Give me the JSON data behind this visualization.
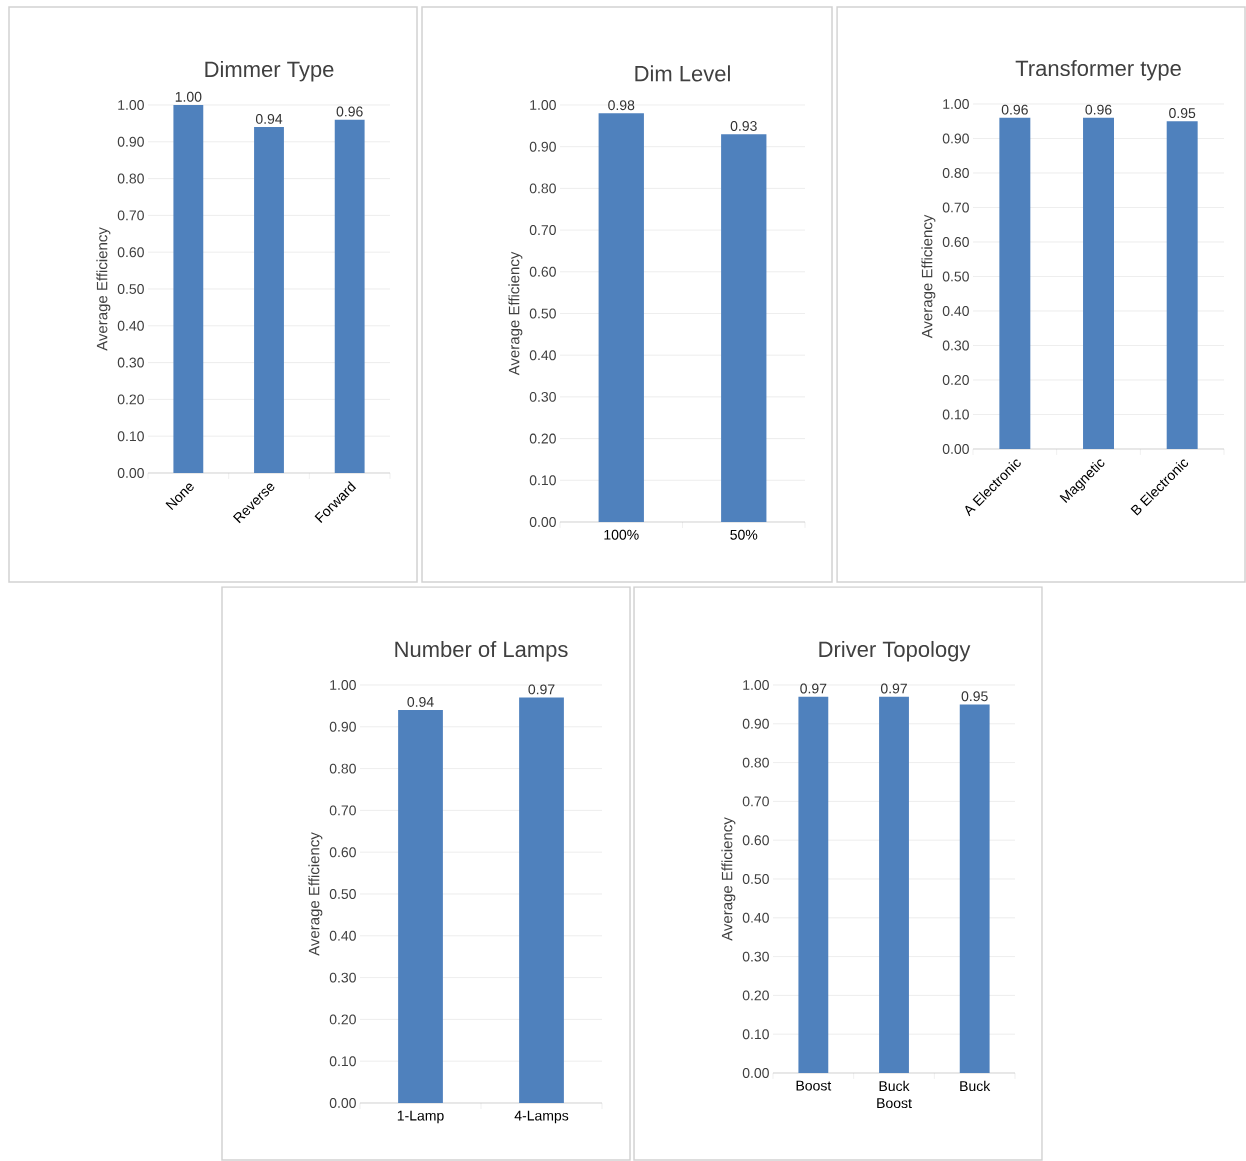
{
  "chart_data": [
    {
      "type": "bar",
      "title": "Dimmer Type",
      "ylabel": "Average Efficiency",
      "categories": [
        "None",
        "Reverse",
        "Forward"
      ],
      "values": [
        1.0,
        0.94,
        0.96
      ],
      "value_labels": [
        "1.00",
        "0.94",
        "0.96"
      ],
      "color": "#4f81bd",
      "grid": "y",
      "ylim": [
        0,
        1.0
      ],
      "yticks": [
        {
          "value": 0,
          "label": "0.00"
        },
        {
          "value": 0.1,
          "label": "0.10"
        },
        {
          "value": 0.2,
          "label": "0.20"
        },
        {
          "value": 0.3,
          "label": "0.30"
        },
        {
          "value": 0.4,
          "label": "0.40"
        },
        {
          "value": 0.5,
          "label": "0.50"
        },
        {
          "value": 0.6,
          "label": "0.60"
        },
        {
          "value": 0.7,
          "label": "0.70"
        },
        {
          "value": 0.8,
          "label": "0.80"
        },
        {
          "value": 0.9,
          "label": "0.90"
        },
        {
          "value": 1.0,
          "label": "1.00"
        }
      ]
    },
    {
      "type": "bar",
      "title": "Dim Level",
      "ylabel": "Average Efficiency",
      "categories": [
        "100%",
        "50%"
      ],
      "values": [
        0.98,
        0.93
      ],
      "value_labels": [
        "0.98",
        "0.93"
      ],
      "color": "#4f81bd",
      "grid": "y",
      "ylim": [
        0,
        1.0
      ],
      "yticks": [
        {
          "value": 0,
          "label": "0.00"
        },
        {
          "value": 0.1,
          "label": "0.10"
        },
        {
          "value": 0.2,
          "label": "0.20"
        },
        {
          "value": 0.3,
          "label": "0.30"
        },
        {
          "value": 0.4,
          "label": "0.40"
        },
        {
          "value": 0.5,
          "label": "0.50"
        },
        {
          "value": 0.6,
          "label": "0.60"
        },
        {
          "value": 0.7,
          "label": "0.70"
        },
        {
          "value": 0.8,
          "label": "0.80"
        },
        {
          "value": 0.9,
          "label": "0.90"
        },
        {
          "value": 1.0,
          "label": "1.00"
        }
      ]
    },
    {
      "type": "bar",
      "title": "Transformer type",
      "ylabel": "Average Efficiency",
      "categories": [
        "A Electronic",
        "Magnetic",
        "B Electronic"
      ],
      "values": [
        0.96,
        0.96,
        0.95
      ],
      "value_labels": [
        "0.96",
        "0.96",
        "0.95"
      ],
      "color": "#4f81bd",
      "grid": "y",
      "ylim": [
        0,
        1.0
      ],
      "yticks": [
        {
          "value": 0,
          "label": "0.00"
        },
        {
          "value": 0.1,
          "label": "0.10"
        },
        {
          "value": 0.2,
          "label": "0.20"
        },
        {
          "value": 0.3,
          "label": "0.30"
        },
        {
          "value": 0.4,
          "label": "0.40"
        },
        {
          "value": 0.5,
          "label": "0.50"
        },
        {
          "value": 0.6,
          "label": "0.60"
        },
        {
          "value": 0.7,
          "label": "0.70"
        },
        {
          "value": 0.8,
          "label": "0.80"
        },
        {
          "value": 0.9,
          "label": "0.90"
        },
        {
          "value": 1.0,
          "label": "1.00"
        }
      ]
    },
    {
      "type": "bar",
      "title": "Number of Lamps",
      "ylabel": "Average Efficiency",
      "categories": [
        "1-Lamp",
        "4-Lamps"
      ],
      "values": [
        0.94,
        0.97
      ],
      "value_labels": [
        "0.94",
        "0.97"
      ],
      "color": "#4f81bd",
      "grid": "y",
      "ylim": [
        0,
        1.0
      ],
      "yticks": [
        {
          "value": 0,
          "label": "0.00"
        },
        {
          "value": 0.1,
          "label": "0.10"
        },
        {
          "value": 0.2,
          "label": "0.20"
        },
        {
          "value": 0.3,
          "label": "0.30"
        },
        {
          "value": 0.4,
          "label": "0.40"
        },
        {
          "value": 0.5,
          "label": "0.50"
        },
        {
          "value": 0.6,
          "label": "0.60"
        },
        {
          "value": 0.7,
          "label": "0.70"
        },
        {
          "value": 0.8,
          "label": "0.80"
        },
        {
          "value": 0.9,
          "label": "0.90"
        },
        {
          "value": 1.0,
          "label": "1.00"
        }
      ]
    },
    {
      "type": "bar",
      "title": "Driver Topology",
      "ylabel": "Average Efficiency",
      "categories": [
        "Boost",
        "Buck Boost",
        "Buck"
      ],
      "values": [
        0.97,
        0.97,
        0.95
      ],
      "value_labels": [
        "0.97",
        "0.97",
        "0.95"
      ],
      "color": "#4f81bd",
      "grid": "y",
      "ylim": [
        0,
        1.0
      ],
      "yticks": [
        {
          "value": 0,
          "label": "0.00"
        },
        {
          "value": 0.1,
          "label": "0.10"
        },
        {
          "value": 0.2,
          "label": "0.20"
        },
        {
          "value": 0.3,
          "label": "0.30"
        },
        {
          "value": 0.4,
          "label": "0.40"
        },
        {
          "value": 0.5,
          "label": "0.50"
        },
        {
          "value": 0.6,
          "label": "0.60"
        },
        {
          "value": 0.7,
          "label": "0.70"
        },
        {
          "value": 0.8,
          "label": "0.80"
        },
        {
          "value": 0.9,
          "label": "0.90"
        },
        {
          "value": 1.0,
          "label": "1.00"
        }
      ]
    }
  ]
}
